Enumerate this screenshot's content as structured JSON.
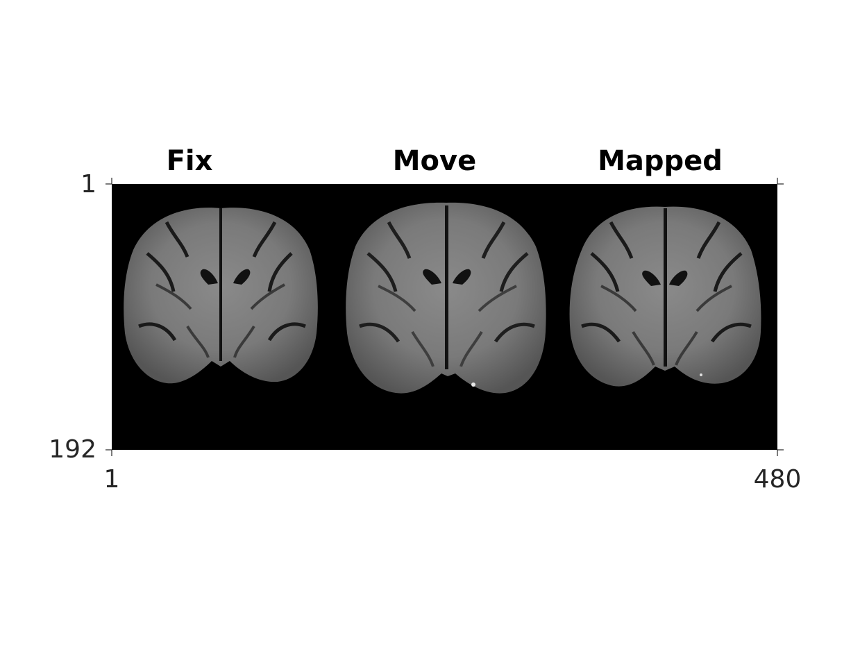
{
  "panels": [
    {
      "title": "Fix"
    },
    {
      "title": "Move"
    },
    {
      "title": "Mapped"
    }
  ],
  "axes": {
    "y_ticks": [
      "1",
      "192"
    ],
    "x_ticks": [
      "1",
      "480"
    ]
  },
  "colors": {
    "background": "#ffffff",
    "image_background": "#000000",
    "tick_color": "#262626"
  }
}
